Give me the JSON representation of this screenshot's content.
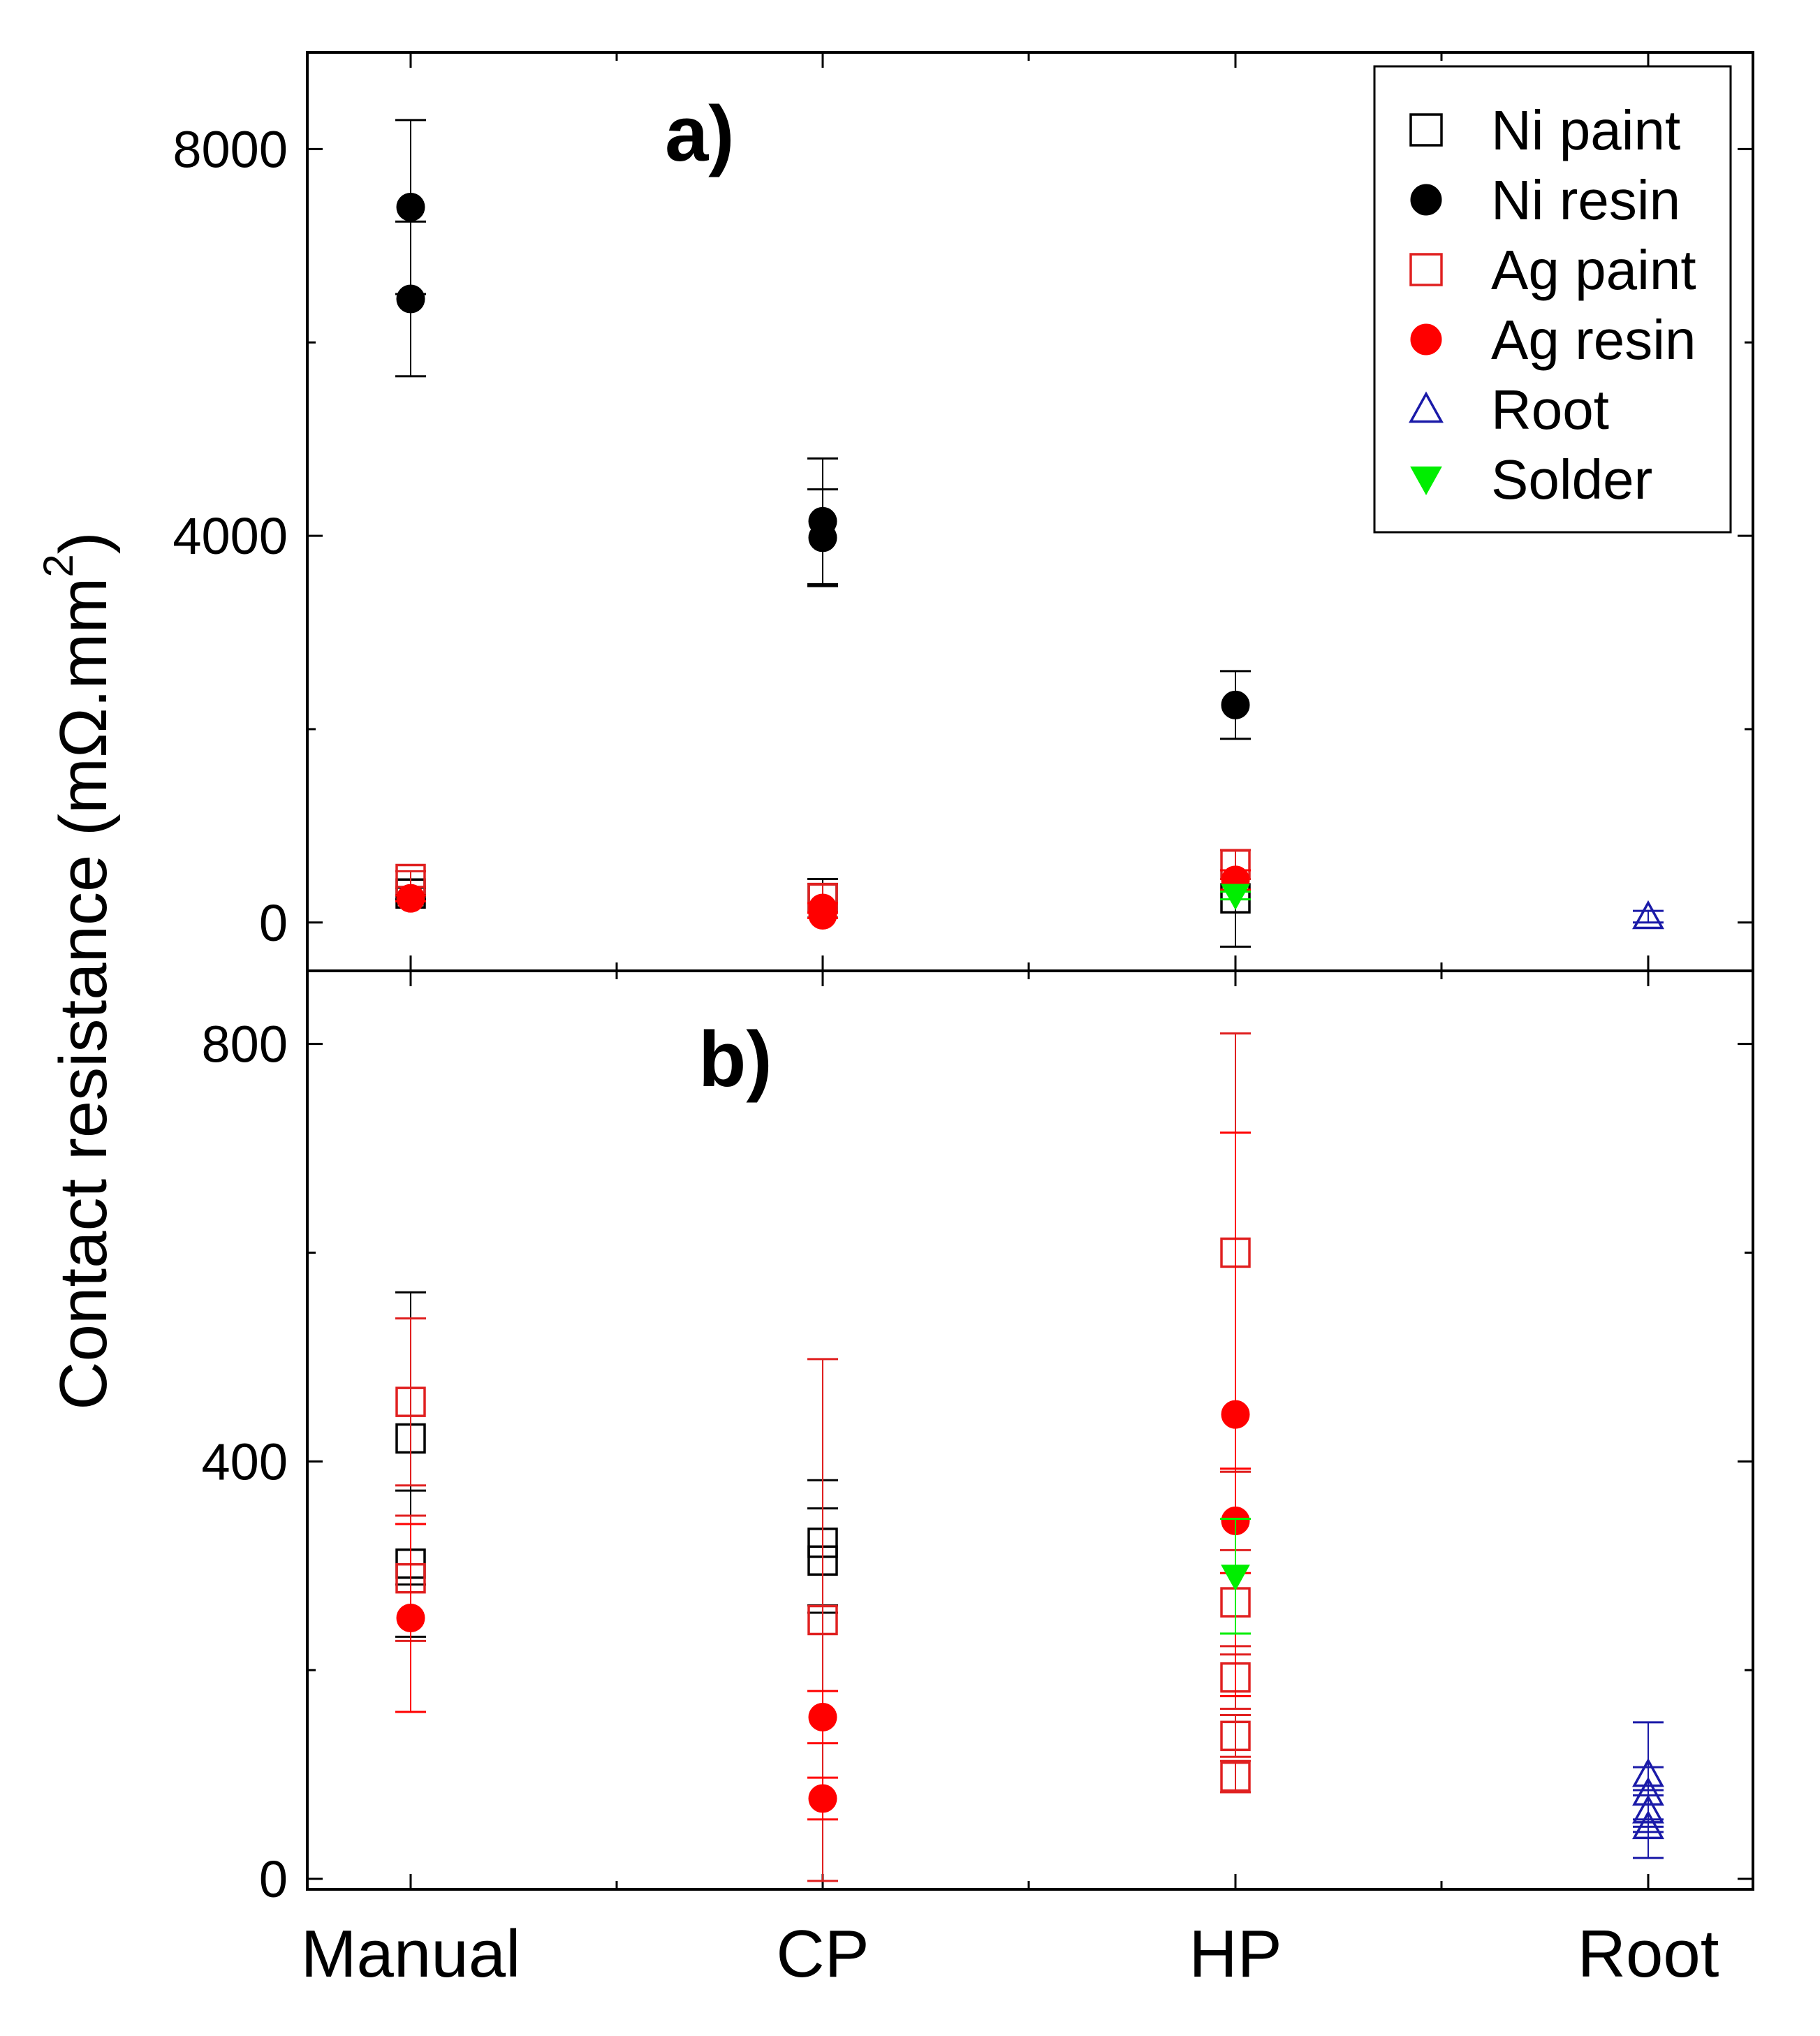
{
  "chart_data": [
    {
      "type": "scatter",
      "panel_label": "a)",
      "title": "",
      "xlabel": "",
      "ylabel": "Contact resistance (mΩ.mm²)",
      "categories": [
        "Manual",
        "CP",
        "HP",
        "Root"
      ],
      "ylim": [
        -500,
        9000
      ],
      "yticks": [
        "0",
        "4000",
        "8000"
      ],
      "ytick_values": [
        0,
        4000,
        8000
      ],
      "series": [
        {
          "name": "Ni paint",
          "marker": "open-square",
          "color": "#000000",
          "points": [
            {
              "category": "Manual",
              "value": 300,
              "err": 60
            },
            {
              "category": "CP",
              "value": 250,
              "err": 200
            },
            {
              "category": "HP",
              "value": 250,
              "err": 500
            }
          ]
        },
        {
          "name": "Ni resin",
          "marker": "filled-circle",
          "color": "#000000",
          "points": [
            {
              "category": "Manual",
              "value": 7400,
              "err": 900
            },
            {
              "category": "Manual",
              "value": 6450,
              "err": 800
            },
            {
              "category": "CP",
              "value": 4150,
              "err": 650
            },
            {
              "category": "CP",
              "value": 3980,
              "err": 500
            },
            {
              "category": "HP",
              "value": 2250,
              "err": 350
            }
          ]
        },
        {
          "name": "Ag paint",
          "marker": "open-square",
          "color": "#e02020",
          "points": [
            {
              "category": "Manual",
              "value": 450,
              "err": 80
            },
            {
              "category": "CP",
              "value": 250,
              "err": 150
            },
            {
              "category": "HP",
              "value": 600,
              "err": 150
            }
          ]
        },
        {
          "name": "Ag resin",
          "marker": "filled-circle",
          "color": "#ff0000",
          "points": [
            {
              "category": "Manual",
              "value": 250,
              "err": 30
            },
            {
              "category": "CP",
              "value": 150,
              "err": 50
            },
            {
              "category": "CP",
              "value": 75,
              "err": 30
            },
            {
              "category": "HP",
              "value": 440,
              "err": 100
            }
          ]
        },
        {
          "name": "Root",
          "marker": "open-triangle-up",
          "color": "#1a1aa8",
          "points": [
            {
              "category": "Root",
              "value": 60,
              "err": 60
            }
          ]
        },
        {
          "name": "Solder",
          "marker": "filled-triangle-down",
          "color": "#00ee00",
          "points": [
            {
              "category": "HP",
              "value": 280,
              "err": 40
            }
          ]
        }
      ],
      "legend_position": "top-right"
    },
    {
      "type": "scatter",
      "panel_label": "b)",
      "title": "",
      "xlabel": "",
      "ylabel": "Contact resistance (mΩ.mm²)",
      "categories": [
        "Manual",
        "CP",
        "HP",
        "Root"
      ],
      "ylim": [
        -10,
        870
      ],
      "yticks": [
        "0",
        "400",
        "800"
      ],
      "ytick_values": [
        0,
        400,
        800
      ],
      "series": [
        {
          "name": "Ni paint",
          "marker": "open-square",
          "color": "#000000",
          "points": [
            {
              "category": "Manual",
              "value": 422,
              "err": 140
            },
            {
              "category": "Manual",
              "value": 302,
              "err": 70
            },
            {
              "category": "CP",
              "value": 322,
              "err": 60
            },
            {
              "category": "CP",
              "value": 305,
              "err": 50
            }
          ]
        },
        {
          "name": "Ni resin",
          "marker": "filled-circle",
          "color": "#000000",
          "points": []
        },
        {
          "name": "Ag paint",
          "marker": "open-square",
          "color": "#e02020",
          "points": [
            {
              "category": "Manual",
              "value": 457,
              "err": 80
            },
            {
              "category": "Manual",
              "value": 288,
              "err": 60
            },
            {
              "category": "CP",
              "value": 248,
              "err": 250
            },
            {
              "category": "HP",
              "value": 600,
              "err": 210
            },
            {
              "category": "HP",
              "value": 265,
              "err": 50
            },
            {
              "category": "HP",
              "value": 193,
              "err": 30
            },
            {
              "category": "HP",
              "value": 137,
              "err": 20
            },
            {
              "category": "HP",
              "value": 98,
              "err": 15
            }
          ]
        },
        {
          "name": "Ag resin",
          "marker": "filled-circle",
          "color": "#ff0000",
          "points": [
            {
              "category": "Manual",
              "value": 250,
              "err": 90
            },
            {
              "category": "CP",
              "value": 155,
              "err": 25
            },
            {
              "category": "CP",
              "value": 77,
              "err": 20
            },
            {
              "category": "HP",
              "value": 445,
              "err": 270
            },
            {
              "category": "HP",
              "value": 343,
              "err": 50
            }
          ]
        },
        {
          "name": "Root",
          "marker": "open-triangle-up",
          "color": "#1a1aa8",
          "points": [
            {
              "category": "Root",
              "value": 100,
              "err": 50
            },
            {
              "category": "Root",
              "value": 82,
              "err": 25
            },
            {
              "category": "Root",
              "value": 65,
              "err": 20
            },
            {
              "category": "Root",
              "value": 50,
              "err": 30
            }
          ]
        },
        {
          "name": "Solder",
          "marker": "filled-triangle-down",
          "color": "#00ee00",
          "points": [
            {
              "category": "HP",
              "value": 290,
              "err": 55
            }
          ]
        }
      ]
    }
  ],
  "legend": {
    "items": [
      {
        "label": "Ni paint",
        "marker": "open-square",
        "color": "#000000"
      },
      {
        "label": "Ni resin",
        "marker": "filled-circle",
        "color": "#000000"
      },
      {
        "label": "Ag paint",
        "marker": "open-square",
        "color": "#e02020"
      },
      {
        "label": "Ag resin",
        "marker": "filled-circle",
        "color": "#ff0000"
      },
      {
        "label": "Root",
        "marker": "open-triangle-up",
        "color": "#1a1aa8"
      },
      {
        "label": "Solder",
        "marker": "filled-triangle-down",
        "color": "#00ee00"
      }
    ]
  },
  "y_axis_title": {
    "main": "Contact resistance (mΩ.mm",
    "superscript": "2",
    "close": ")"
  }
}
